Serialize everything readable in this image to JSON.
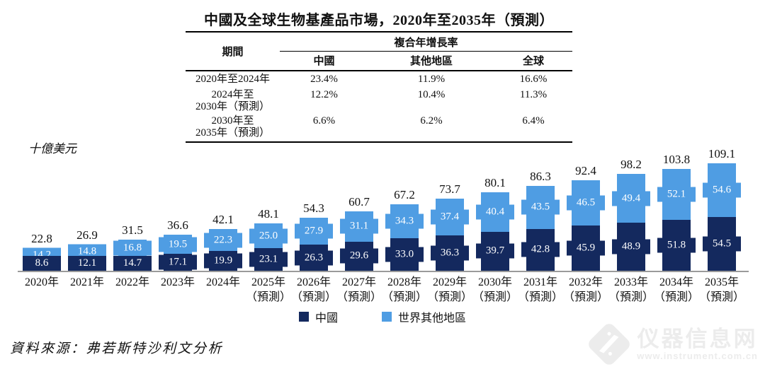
{
  "title": "中國及全球生物基產品市場，2020年至2035年（預測）",
  "table": {
    "period_header": "期間",
    "cagr_header": "複合年增長率",
    "col_headers": [
      "中國",
      "其他地區",
      "全球"
    ],
    "rows": [
      {
        "period_line1": "2020年至2024年",
        "period_line2": "",
        "china": "23.4%",
        "other": "11.9%",
        "global": "16.6%"
      },
      {
        "period_line1": "2024年至",
        "period_line2": "2030年（預測）",
        "china": "12.2%",
        "other": "10.4%",
        "global": "11.3%"
      },
      {
        "period_line1": "2030年至",
        "period_line2": "2035年（預測）",
        "china": "6.6%",
        "other": "6.2%",
        "global": "6.4%"
      }
    ]
  },
  "chart_data": {
    "type": "bar",
    "stacked": true,
    "title": "中國及全球生物基產品市場，2020年至2035年（預測）",
    "ylabel": "十億美元",
    "ylim": [
      0,
      115
    ],
    "grid": false,
    "legend_position": "bottom",
    "categories": [
      "2020年",
      "2021年",
      "2022年",
      "2023年",
      "2024年",
      "2025年",
      "2026年",
      "2027年",
      "2028年",
      "2029年",
      "2030年",
      "2031年",
      "2032年",
      "2033年",
      "2034年",
      "2035年"
    ],
    "forecast_suffix": "（預測）",
    "forecast_start_index": 5,
    "series": [
      {
        "name": "中國",
        "color": "#14295E",
        "values": [
          8.6,
          12.1,
          14.7,
          17.1,
          19.9,
          23.1,
          26.3,
          29.6,
          33.0,
          36.3,
          39.7,
          42.8,
          45.9,
          48.9,
          51.8,
          54.5
        ]
      },
      {
        "name": "世界其他地區",
        "color": "#4F9DE3",
        "values": [
          14.2,
          14.8,
          16.8,
          19.5,
          22.3,
          25.0,
          27.9,
          31.1,
          34.3,
          37.4,
          40.4,
          43.5,
          46.5,
          49.4,
          52.1,
          54.6
        ]
      }
    ],
    "totals": [
      22.8,
      26.9,
      31.5,
      36.6,
      42.1,
      48.1,
      54.3,
      60.7,
      67.2,
      73.7,
      80.1,
      86.3,
      92.4,
      98.2,
      103.8,
      109.1
    ]
  },
  "source": "資料來源：弗若斯特沙利文分析",
  "watermark": {
    "site_name": "仪器信息网",
    "site_url": "www.instrument.com.cn"
  },
  "colors": {
    "china_series": "#14295E",
    "world_series": "#4F9DE3",
    "axis_line": "#9a9a9a",
    "text": "#111111"
  }
}
